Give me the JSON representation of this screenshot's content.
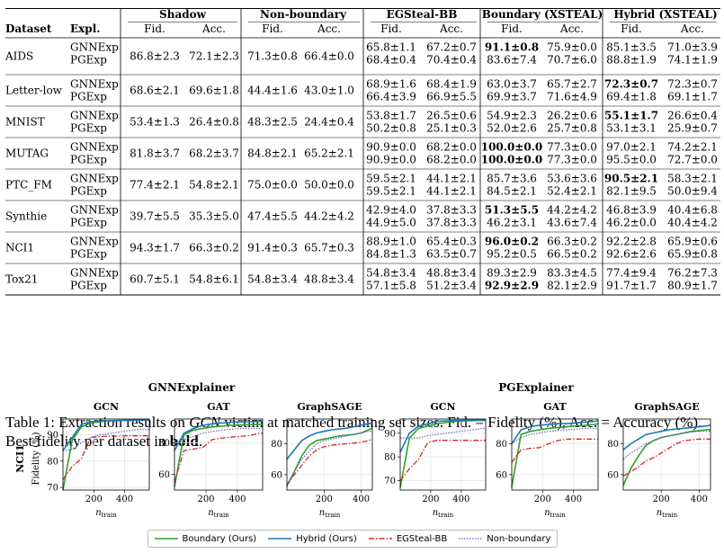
{
  "table": {
    "group_headers": [
      "Shadow",
      "Non-boundary",
      "EGSteal-BB",
      "Boundary (XSTEAL)",
      "Hybrid (XSTEAL)"
    ],
    "col_dataset": "Dataset",
    "col_expl": "Expl.",
    "sub_headers": [
      "Fid.",
      "Acc."
    ],
    "explainers": [
      "GNNExp",
      "PGExp"
    ],
    "rows": [
      {
        "dataset": "AIDS",
        "shadow": [
          "86.8±2.3",
          "72.1±2.3"
        ],
        "nonb": [
          "71.3±0.8",
          "66.4±0.0"
        ],
        "eg": [
          [
            "65.8±1.1",
            "67.2±0.7"
          ],
          [
            "68.4±0.4",
            "70.4±0.4"
          ]
        ],
        "bd": [
          [
            "91.1±0.8",
            "75.9±0.0"
          ],
          [
            "83.6±7.4",
            "70.7±6.0"
          ]
        ],
        "hy": [
          [
            "85.1±3.5",
            "71.0±3.9"
          ],
          [
            "88.8±1.9",
            "74.1±1.9"
          ]
        ],
        "bold": [
          "bd0"
        ]
      },
      {
        "dataset": "Letter-low",
        "shadow": [
          "68.6±2.1",
          "69.6±1.8"
        ],
        "nonb": [
          "44.4±1.6",
          "43.0±1.0"
        ],
        "eg": [
          [
            "68.9±1.6",
            "68.4±1.9"
          ],
          [
            "66.4±3.9",
            "66.9±5.5"
          ]
        ],
        "bd": [
          [
            "63.0±3.7",
            "65.7±2.7"
          ],
          [
            "69.9±3.7",
            "71.6±4.9"
          ]
        ],
        "hy": [
          [
            "72.3±0.7",
            "72.3±0.7"
          ],
          [
            "69.4±1.8",
            "69.1±1.7"
          ]
        ],
        "bold": [
          "hy0"
        ]
      },
      {
        "dataset": "MNIST",
        "shadow": [
          "53.4±1.3",
          "26.4±0.8"
        ],
        "nonb": [
          "48.3±2.5",
          "24.4±0.4"
        ],
        "eg": [
          [
            "53.8±1.7",
            "26.5±0.6"
          ],
          [
            "50.2±0.8",
            "25.1±0.3"
          ]
        ],
        "bd": [
          [
            "54.9±2.3",
            "26.2±0.6"
          ],
          [
            "52.0±2.6",
            "25.7±0.8"
          ]
        ],
        "hy": [
          [
            "55.1±1.7",
            "26.6±0.4"
          ],
          [
            "53.1±3.1",
            "25.9±0.7"
          ]
        ],
        "bold": [
          "hy0"
        ]
      },
      {
        "dataset": "MUTAG",
        "shadow": [
          "81.8±3.7",
          "68.2±3.7"
        ],
        "nonb": [
          "84.8±2.1",
          "65.2±2.1"
        ],
        "eg": [
          [
            "90.9±0.0",
            "68.2±0.0"
          ],
          [
            "90.9±0.0",
            "68.2±0.0"
          ]
        ],
        "bd": [
          [
            "100.0±0.0",
            "77.3±0.0"
          ],
          [
            "100.0±0.0",
            "77.3±0.0"
          ]
        ],
        "hy": [
          [
            "97.0±2.1",
            "74.2±2.1"
          ],
          [
            "95.5±0.0",
            "72.7±0.0"
          ]
        ],
        "bold": [
          "bd0",
          "bd1"
        ]
      },
      {
        "dataset": "PTC_FM",
        "shadow": [
          "77.4±2.1",
          "54.8±2.1"
        ],
        "nonb": [
          "75.0±0.0",
          "50.0±0.0"
        ],
        "eg": [
          [
            "59.5±2.1",
            "44.1±2.1"
          ],
          [
            "59.5±2.1",
            "44.1±2.1"
          ]
        ],
        "bd": [
          [
            "85.7±3.6",
            "53.6±3.6"
          ],
          [
            "84.5±2.1",
            "52.4±2.1"
          ]
        ],
        "hy": [
          [
            "90.5±2.1",
            "58.3±2.1"
          ],
          [
            "82.1±9.5",
            "50.0±9.4"
          ]
        ],
        "bold": [
          "hy0"
        ]
      },
      {
        "dataset": "Synthie",
        "shadow": [
          "39.7±5.5",
          "35.3±5.0"
        ],
        "nonb": [
          "47.4±5.5",
          "44.2±4.2"
        ],
        "eg": [
          [
            "42.9±4.0",
            "37.8±3.3"
          ],
          [
            "44.9±5.0",
            "37.8±3.3"
          ]
        ],
        "bd": [
          [
            "51.3±5.5",
            "44.2±4.2"
          ],
          [
            "46.2±3.1",
            "43.6±7.4"
          ]
        ],
        "hy": [
          [
            "46.8±3.9",
            "40.4±6.8"
          ],
          [
            "46.2±0.0",
            "40.4±4.2"
          ]
        ],
        "bold": [
          "bd0"
        ]
      },
      {
        "dataset": "NCI1",
        "shadow": [
          "94.3±1.7",
          "66.3±0.2"
        ],
        "nonb": [
          "91.4±0.3",
          "65.7±0.3"
        ],
        "eg": [
          [
            "88.9±1.0",
            "65.4±0.3"
          ],
          [
            "84.8±1.3",
            "63.5±0.7"
          ]
        ],
        "bd": [
          [
            "96.0±0.2",
            "66.3±0.2"
          ],
          [
            "95.2±0.5",
            "66.5±0.2"
          ]
        ],
        "hy": [
          [
            "92.2±2.8",
            "65.9±0.6"
          ],
          [
            "92.6±2.6",
            "65.9±0.8"
          ]
        ],
        "bold": [
          "bd0"
        ]
      },
      {
        "dataset": "Tox21",
        "shadow": [
          "60.7±5.1",
          "54.8±6.1"
        ],
        "nonb": [
          "54.8±3.4",
          "48.8±3.4"
        ],
        "eg": [
          [
            "54.8±3.4",
            "48.8±3.4"
          ],
          [
            "57.1±5.8",
            "51.2±3.4"
          ]
        ],
        "bd": [
          [
            "89.3±2.9",
            "83.3±4.5"
          ],
          [
            "92.9±2.9",
            "82.1±2.9"
          ]
        ],
        "hy": [
          [
            "77.4±9.4",
            "76.2±7.3"
          ],
          [
            "91.7±1.7",
            "80.9±1.7"
          ]
        ],
        "bold": [
          "bd1"
        ]
      }
    ]
  },
  "caption": {
    "part1": "Table 1: Extraction results on ",
    "victim": "GCN",
    "part2": " victim at matched training set sizes. Fid. = Fidelity (%), Acc. = Accuracy (%). Best fidelity per dataset in ",
    "bold_word": "bold",
    "part3": "."
  },
  "figure": {
    "group_titles": [
      "GNNExplainer",
      "PGExplainer"
    ],
    "row_label": "NCI1",
    "ylabel": "Fidelity (%)",
    "xlabel": "n_train",
    "legend": [
      "Boundary (Ours)",
      "Hybrid (Ours)",
      "EGSteal-BB",
      "Non-boundary"
    ],
    "colors": {
      "boundary": "#2ca02c",
      "hybrid": "#1f77b4",
      "egsteal": "#d62728",
      "nonb": "#6f5fc8"
    }
  },
  "chart_data": [
    {
      "type": "line",
      "title": "GCN",
      "xlabel": "n_train",
      "ylabel": "Fidelity (%)",
      "xticks": [
        200,
        400
      ],
      "yticks": [
        70,
        80,
        90
      ],
      "ylim": [
        69,
        96
      ],
      "xlim": [
        0,
        560
      ],
      "x": [
        0,
        60,
        120,
        180,
        240,
        300,
        360,
        420,
        480,
        540,
        560
      ],
      "series": [
        {
          "name": "Boundary (Ours)",
          "values": [
            69,
            88,
            93,
            94.5,
            95,
            95.3,
            95.5,
            95.6,
            95.7,
            95.8,
            95.8
          ]
        },
        {
          "name": "Hybrid (Ours)",
          "values": [
            84,
            89,
            94,
            95,
            95.2,
            95.3,
            95.4,
            95.5,
            95.6,
            95.6,
            95.6
          ]
        },
        {
          "name": "EGSteal-BB",
          "values": [
            73,
            78,
            81,
            89,
            89.3,
            89.5,
            89.5,
            89.6,
            89.6,
            89.6,
            89.6
          ]
        },
        {
          "name": "Non-boundary",
          "values": [
            84,
            84.5,
            87,
            89,
            90,
            90.5,
            91,
            91.5,
            92,
            92,
            92
          ]
        }
      ]
    },
    {
      "type": "line",
      "title": "GAT",
      "xlabel": "n_train",
      "xticks": [
        200,
        400
      ],
      "yticks": [
        60,
        80
      ],
      "ylim": [
        50,
        95
      ],
      "xlim": [
        0,
        560
      ],
      "x": [
        0,
        60,
        120,
        180,
        240,
        300,
        360,
        420,
        480,
        540,
        560
      ],
      "series": [
        {
          "name": "Boundary (Ours)",
          "values": [
            52,
            85,
            88,
            89,
            90,
            90.5,
            91,
            91.2,
            91.4,
            91.5,
            91.5
          ]
        },
        {
          "name": "Hybrid (Ours)",
          "values": [
            75,
            86,
            89,
            91,
            92,
            92.5,
            93,
            93.2,
            93.3,
            93.5,
            93.5
          ]
        },
        {
          "name": "EGSteal-BB",
          "values": [
            55,
            75,
            76,
            77,
            82,
            83,
            83.5,
            84,
            84.5,
            86,
            86
          ]
        },
        {
          "name": "Non-boundary",
          "values": [
            80,
            82,
            84,
            86,
            87,
            88,
            88.5,
            89,
            89,
            89,
            89
          ]
        }
      ]
    },
    {
      "type": "line",
      "title": "GraphSAGE",
      "xlabel": "n_train",
      "xticks": [
        200,
        400
      ],
      "yticks": [
        60,
        80
      ],
      "ylim": [
        50,
        96
      ],
      "xlim": [
        0,
        460
      ],
      "x": [
        0,
        40,
        80,
        120,
        160,
        200,
        240,
        280,
        320,
        360,
        400,
        440,
        460
      ],
      "series": [
        {
          "name": "Boundary (Ours)",
          "values": [
            53,
            62,
            72,
            79,
            82,
            83,
            84,
            85,
            85.5,
            86,
            87,
            89,
            90
          ]
        },
        {
          "name": "Hybrid (Ours)",
          "values": [
            70,
            76,
            82,
            85,
            87,
            88,
            89,
            89.5,
            90,
            91,
            92,
            93,
            93.5
          ]
        },
        {
          "name": "EGSteal-BB",
          "values": [
            53,
            60,
            66,
            72,
            76,
            78,
            79,
            79.5,
            80,
            80.5,
            81,
            82,
            83
          ]
        },
        {
          "name": "Non-boundary",
          "values": [
            52,
            62,
            70,
            75,
            80,
            82,
            83,
            84,
            85,
            86,
            87,
            88,
            88
          ]
        }
      ]
    },
    {
      "type": "line",
      "title": "GCN",
      "xlabel": "n_train",
      "xticks": [
        200,
        400
      ],
      "yticks": [
        70,
        80,
        90
      ],
      "ylim": [
        66,
        96
      ],
      "xlim": [
        0,
        560
      ],
      "x": [
        0,
        60,
        120,
        180,
        240,
        300,
        360,
        420,
        480,
        540,
        560
      ],
      "series": [
        {
          "name": "Boundary (Ours)",
          "values": [
            67,
            88,
            92,
            93,
            94,
            94.5,
            95,
            95.2,
            95.3,
            95.4,
            95.4
          ]
        },
        {
          "name": "Hybrid (Ours)",
          "values": [
            82,
            90,
            93,
            94,
            95,
            95.2,
            95.4,
            95.5,
            95.6,
            95.6,
            95.6
          ]
        },
        {
          "name": "EGSteal-BB",
          "values": [
            70,
            75,
            79,
            86,
            87,
            87,
            87,
            87,
            87,
            87,
            87
          ]
        },
        {
          "name": "Non-boundary",
          "values": [
            88,
            88,
            88,
            89,
            89.5,
            90,
            90.5,
            91,
            91.5,
            92,
            92
          ]
        }
      ]
    },
    {
      "type": "line",
      "title": "GAT",
      "xlabel": "n_train",
      "xticks": [
        200,
        400
      ],
      "yticks": [
        60,
        80
      ],
      "ylim": [
        50,
        96
      ],
      "xlim": [
        0,
        560
      ],
      "x": [
        0,
        60,
        120,
        180,
        240,
        300,
        360,
        420,
        480,
        540,
        560
      ],
      "series": [
        {
          "name": "Boundary (Ours)",
          "values": [
            52,
            86,
            88,
            89,
            90,
            90.5,
            91,
            91.5,
            92,
            92.5,
            93
          ]
        },
        {
          "name": "Hybrid (Ours)",
          "values": [
            80,
            89,
            91,
            92,
            92.5,
            93,
            93,
            93.5,
            94,
            94.5,
            95
          ]
        },
        {
          "name": "EGSteal-BB",
          "values": [
            68,
            76,
            77,
            77.5,
            80,
            82,
            83,
            83,
            83,
            83,
            83
          ]
        },
        {
          "name": "Non-boundary",
          "values": [
            80,
            84,
            86,
            87,
            88,
            88.5,
            89,
            89.5,
            90,
            90,
            90
          ]
        }
      ]
    },
    {
      "type": "line",
      "title": "GraphSAGE",
      "xlabel": "n_train",
      "xticks": [
        200,
        400
      ],
      "yticks": [
        60,
        80
      ],
      "ylim": [
        50,
        96
      ],
      "xlim": [
        0,
        460
      ],
      "x": [
        0,
        40,
        80,
        120,
        160,
        200,
        240,
        280,
        320,
        360,
        400,
        440,
        460
      ],
      "series": [
        {
          "name": "Boundary (Ours)",
          "values": [
            53,
            64,
            72,
            79,
            82,
            84,
            85,
            86,
            87,
            88,
            88.5,
            89,
            89
          ]
        },
        {
          "name": "Hybrid (Ours)",
          "values": [
            76,
            80,
            83,
            86,
            87,
            88,
            89,
            89.5,
            90,
            90.5,
            91,
            91.5,
            92
          ]
        },
        {
          "name": "EGSteal-BB",
          "values": [
            59,
            62,
            65,
            69,
            71,
            74,
            77,
            80,
            82,
            82.5,
            83,
            83,
            83
          ]
        },
        {
          "name": "Non-boundary",
          "values": [
            70,
            74,
            77,
            80,
            82,
            84,
            85,
            86,
            87,
            87.5,
            88,
            88,
            88
          ]
        }
      ]
    }
  ]
}
